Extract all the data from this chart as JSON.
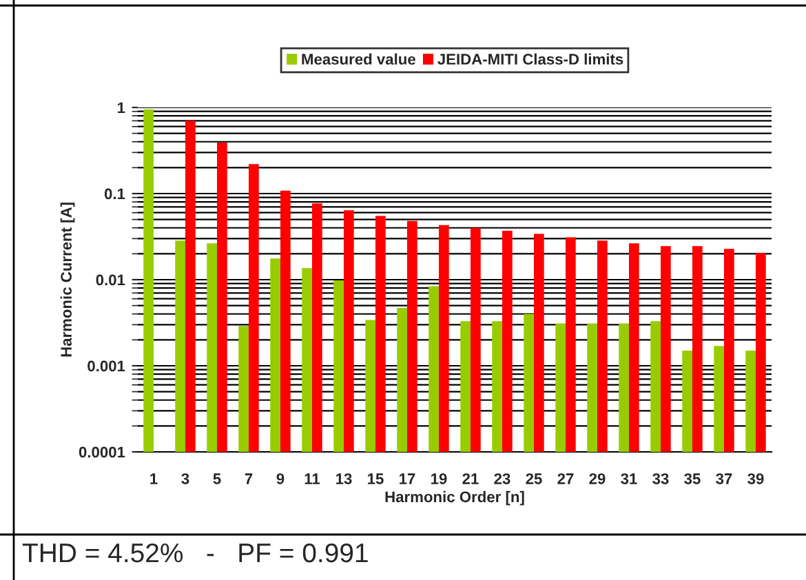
{
  "chart_data": {
    "type": "bar",
    "xlabel": "Harmonic Order [n]",
    "ylabel": "Harmonic Current [A]",
    "categories": [
      "1",
      "3",
      "5",
      "7",
      "9",
      "11",
      "13",
      "15",
      "17",
      "19",
      "21",
      "23",
      "25",
      "27",
      "29",
      "31",
      "33",
      "35",
      "37",
      "39"
    ],
    "series": [
      {
        "name": "Measured value",
        "color": "#99cc00",
        "values": [
          0.95,
          0.0285,
          0.0264,
          0.0029,
          0.0176,
          0.0136,
          0.0098,
          0.0034,
          0.0047,
          0.0084,
          0.0033,
          0.0033,
          0.004,
          0.0031,
          0.0031,
          0.0031,
          0.0033,
          0.0015,
          0.0017,
          0.0015
        ]
      },
      {
        "name": "JEIDA-MITI Class-D limits",
        "color": "#ff0000",
        "values": [
          null,
          0.7,
          0.39,
          0.22,
          0.108,
          0.077,
          0.064,
          0.055,
          0.048,
          0.043,
          0.04,
          0.037,
          0.034,
          0.031,
          0.0285,
          0.0264,
          0.0246,
          0.0246,
          0.0228,
          0.0204
        ]
      }
    ],
    "log": true,
    "ylim": [
      0.0001,
      1
    ],
    "yticks": [
      0.0001,
      0.001,
      0.01,
      0.1,
      1
    ],
    "grid": "y",
    "legend": "top",
    "annotations": [
      "THD = 4.52%   -   PF = 0.991"
    ]
  }
}
